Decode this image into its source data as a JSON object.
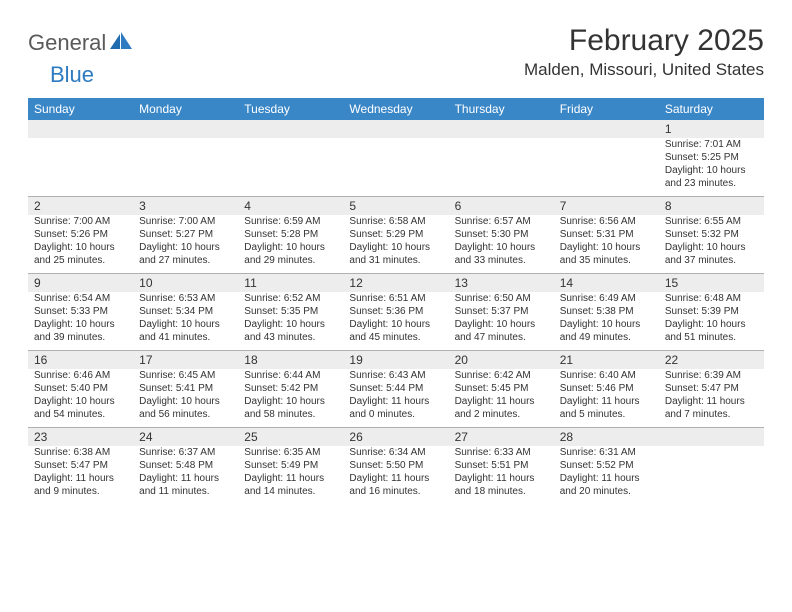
{
  "logo": {
    "part1": "General",
    "part2": "Blue"
  },
  "title": "February 2025",
  "location": "Malden, Missouri, United States",
  "colors": {
    "header_bg": "#3a87c8",
    "header_text": "#ffffff",
    "num_strip_bg": "#ededed",
    "text": "#333333",
    "logo_gray": "#5a5a5a",
    "logo_blue": "#2d7bc0",
    "divider": "#b0b0b0"
  },
  "day_names": [
    "Sunday",
    "Monday",
    "Tuesday",
    "Wednesday",
    "Thursday",
    "Friday",
    "Saturday"
  ],
  "weeks": [
    {
      "nums": [
        "",
        "",
        "",
        "",
        "",
        "",
        "1"
      ],
      "details": [
        "",
        "",
        "",
        "",
        "",
        "",
        "Sunrise: 7:01 AM\nSunset: 5:25 PM\nDaylight: 10 hours and 23 minutes."
      ]
    },
    {
      "nums": [
        "2",
        "3",
        "4",
        "5",
        "6",
        "7",
        "8"
      ],
      "details": [
        "Sunrise: 7:00 AM\nSunset: 5:26 PM\nDaylight: 10 hours and 25 minutes.",
        "Sunrise: 7:00 AM\nSunset: 5:27 PM\nDaylight: 10 hours and 27 minutes.",
        "Sunrise: 6:59 AM\nSunset: 5:28 PM\nDaylight: 10 hours and 29 minutes.",
        "Sunrise: 6:58 AM\nSunset: 5:29 PM\nDaylight: 10 hours and 31 minutes.",
        "Sunrise: 6:57 AM\nSunset: 5:30 PM\nDaylight: 10 hours and 33 minutes.",
        "Sunrise: 6:56 AM\nSunset: 5:31 PM\nDaylight: 10 hours and 35 minutes.",
        "Sunrise: 6:55 AM\nSunset: 5:32 PM\nDaylight: 10 hours and 37 minutes."
      ]
    },
    {
      "nums": [
        "9",
        "10",
        "11",
        "12",
        "13",
        "14",
        "15"
      ],
      "details": [
        "Sunrise: 6:54 AM\nSunset: 5:33 PM\nDaylight: 10 hours and 39 minutes.",
        "Sunrise: 6:53 AM\nSunset: 5:34 PM\nDaylight: 10 hours and 41 minutes.",
        "Sunrise: 6:52 AM\nSunset: 5:35 PM\nDaylight: 10 hours and 43 minutes.",
        "Sunrise: 6:51 AM\nSunset: 5:36 PM\nDaylight: 10 hours and 45 minutes.",
        "Sunrise: 6:50 AM\nSunset: 5:37 PM\nDaylight: 10 hours and 47 minutes.",
        "Sunrise: 6:49 AM\nSunset: 5:38 PM\nDaylight: 10 hours and 49 minutes.",
        "Sunrise: 6:48 AM\nSunset: 5:39 PM\nDaylight: 10 hours and 51 minutes."
      ]
    },
    {
      "nums": [
        "16",
        "17",
        "18",
        "19",
        "20",
        "21",
        "22"
      ],
      "details": [
        "Sunrise: 6:46 AM\nSunset: 5:40 PM\nDaylight: 10 hours and 54 minutes.",
        "Sunrise: 6:45 AM\nSunset: 5:41 PM\nDaylight: 10 hours and 56 minutes.",
        "Sunrise: 6:44 AM\nSunset: 5:42 PM\nDaylight: 10 hours and 58 minutes.",
        "Sunrise: 6:43 AM\nSunset: 5:44 PM\nDaylight: 11 hours and 0 minutes.",
        "Sunrise: 6:42 AM\nSunset: 5:45 PM\nDaylight: 11 hours and 2 minutes.",
        "Sunrise: 6:40 AM\nSunset: 5:46 PM\nDaylight: 11 hours and 5 minutes.",
        "Sunrise: 6:39 AM\nSunset: 5:47 PM\nDaylight: 11 hours and 7 minutes."
      ]
    },
    {
      "nums": [
        "23",
        "24",
        "25",
        "26",
        "27",
        "28",
        ""
      ],
      "details": [
        "Sunrise: 6:38 AM\nSunset: 5:47 PM\nDaylight: 11 hours and 9 minutes.",
        "Sunrise: 6:37 AM\nSunset: 5:48 PM\nDaylight: 11 hours and 11 minutes.",
        "Sunrise: 6:35 AM\nSunset: 5:49 PM\nDaylight: 11 hours and 14 minutes.",
        "Sunrise: 6:34 AM\nSunset: 5:50 PM\nDaylight: 11 hours and 16 minutes.",
        "Sunrise: 6:33 AM\nSunset: 5:51 PM\nDaylight: 11 hours and 18 minutes.",
        "Sunrise: 6:31 AM\nSunset: 5:52 PM\nDaylight: 11 hours and 20 minutes.",
        ""
      ]
    }
  ]
}
